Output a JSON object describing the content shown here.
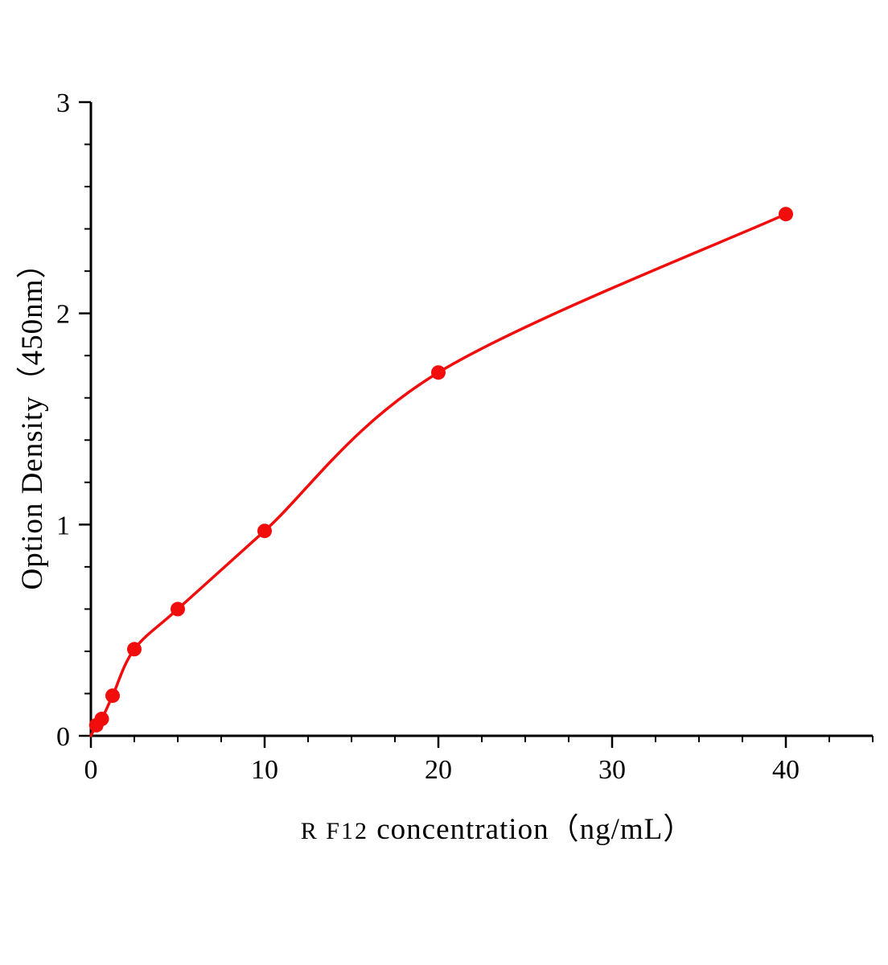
{
  "chart_data": {
    "type": "scatter",
    "title": "",
    "xlabel": "R F12  concentration（ng/mL）",
    "xlabel_prefix": "R F12",
    "xlabel_rest": "  concentration（ng/mL）",
    "ylabel": "Option Density（450nm）",
    "x": [
      0.3125,
      0.625,
      1.25,
      2.5,
      5,
      10,
      20,
      40
    ],
    "y": [
      0.05,
      0.08,
      0.19,
      0.41,
      0.6,
      0.97,
      1.72,
      2.47
    ],
    "curve_start_x": 0,
    "curve_start_y": 0,
    "xlim": [
      0,
      45
    ],
    "ylim": [
      0,
      3
    ],
    "x_major_ticks": [
      0,
      10,
      20,
      30,
      40
    ],
    "x_tick_labels": [
      "0",
      "10",
      "20",
      "30",
      "40"
    ],
    "x_minor_step": 2.5,
    "y_major_ticks": [
      0,
      1,
      2,
      3
    ],
    "y_tick_labels": [
      "0",
      "1",
      "2",
      "3"
    ],
    "y_minor_step": 0.2,
    "grid": false,
    "legend_position": "none",
    "marker_color": "#f20d0d",
    "line_color": "#f20d0d",
    "axis_color": "#000000",
    "marker_radius": 9
  }
}
